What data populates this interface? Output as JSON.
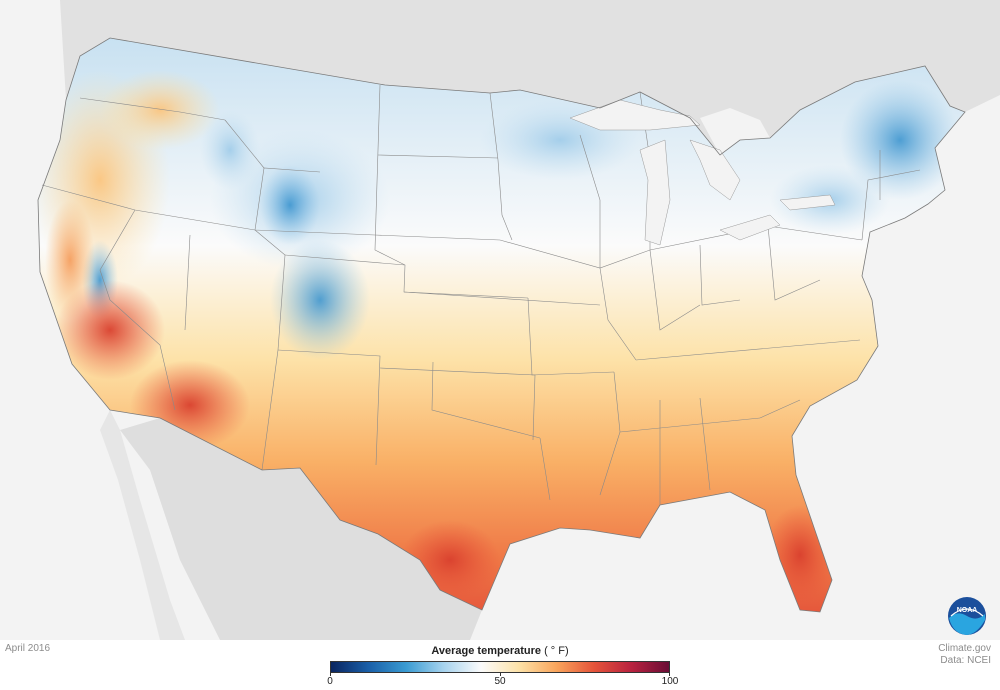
{
  "map": {
    "period": "April 2016",
    "credit_site": "Climate.gov",
    "credit_data": "Data: NCEI",
    "colors": {
      "background": "#f3f3f3",
      "land_neighbor": "#dedede",
      "water": "#f3f3f3",
      "cold": "#2b8cc8",
      "cool": "#a8cfe8",
      "neutral": "#fbfbfb",
      "mild": "#fdd79a",
      "warm": "#f8a35c",
      "hot": "#e8533a",
      "border": "#888888"
    },
    "logo_icon": "noaa-logo-icon"
  },
  "legend": {
    "title": "Average temperature",
    "unit": "( ° F)",
    "min": 0,
    "max": 100,
    "ticks": [
      0,
      50,
      100
    ],
    "gradient": [
      "#0a2560",
      "#1a5fa8",
      "#3a9bd2",
      "#a7d3ee",
      "#fbfbfb",
      "#fde2a8",
      "#f9a55c",
      "#e5543a",
      "#b8223f",
      "#6a0d35"
    ]
  }
}
